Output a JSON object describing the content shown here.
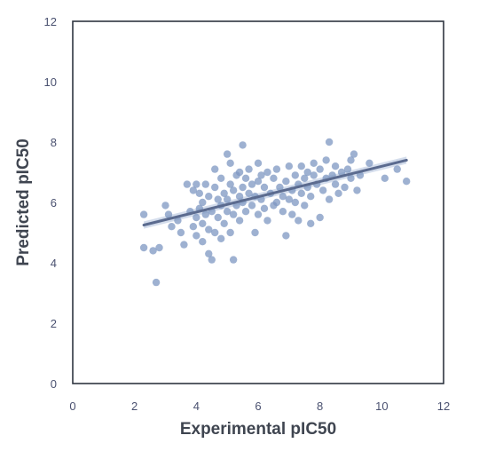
{
  "chart_data": {
    "type": "scatter",
    "title": "",
    "xlabel": "Experimental pIC50",
    "ylabel": "Predicted pIC50",
    "xlim": [
      0,
      12
    ],
    "ylim": [
      0,
      12
    ],
    "xticks": [
      "0",
      "2",
      "4",
      "6",
      "8",
      "10",
      "12"
    ],
    "yticks": [
      "0",
      "2",
      "4",
      "6",
      "8",
      "10",
      "12"
    ],
    "grid": false,
    "legend": "none",
    "colors": {
      "points": "#7e97c2",
      "line": "#5b6b8f",
      "band": "#b8c6e0",
      "frame": "#2f3540"
    },
    "series": [
      {
        "points": [
          [
            2.3,
            5.6
          ],
          [
            2.3,
            4.5
          ],
          [
            2.6,
            4.4
          ],
          [
            2.7,
            3.35
          ],
          [
            2.8,
            4.5
          ],
          [
            3.0,
            5.9
          ],
          [
            3.1,
            5.6
          ],
          [
            3.2,
            5.2
          ],
          [
            3.4,
            5.4
          ],
          [
            3.5,
            5.0
          ],
          [
            3.6,
            4.6
          ],
          [
            3.7,
            6.6
          ],
          [
            3.8,
            5.7
          ],
          [
            3.9,
            5.2
          ],
          [
            3.9,
            6.4
          ],
          [
            4.0,
            4.9
          ],
          [
            4.0,
            5.5
          ],
          [
            4.0,
            6.6
          ],
          [
            4.1,
            5.8
          ],
          [
            4.1,
            6.3
          ],
          [
            4.2,
            4.7
          ],
          [
            4.2,
            5.3
          ],
          [
            4.2,
            6.0
          ],
          [
            4.3,
            5.6
          ],
          [
            4.3,
            6.6
          ],
          [
            4.4,
            4.3
          ],
          [
            4.4,
            5.1
          ],
          [
            4.4,
            6.2
          ],
          [
            4.5,
            4.1
          ],
          [
            4.5,
            5.7
          ],
          [
            4.6,
            5.0
          ],
          [
            4.6,
            6.5
          ],
          [
            4.6,
            7.1
          ],
          [
            4.7,
            5.5
          ],
          [
            4.7,
            6.1
          ],
          [
            4.8,
            4.8
          ],
          [
            4.8,
            5.9
          ],
          [
            4.8,
            6.8
          ],
          [
            4.9,
            5.3
          ],
          [
            4.9,
            6.3
          ],
          [
            5.0,
            5.7
          ],
          [
            5.0,
            7.6
          ],
          [
            5.0,
            6.1
          ],
          [
            5.1,
            6.6
          ],
          [
            5.1,
            7.3
          ],
          [
            5.1,
            5.0
          ],
          [
            5.2,
            4.1
          ],
          [
            5.2,
            6.4
          ],
          [
            5.2,
            5.6
          ],
          [
            5.3,
            6.9
          ],
          [
            5.3,
            5.9
          ],
          [
            5.4,
            6.2
          ],
          [
            5.4,
            7.0
          ],
          [
            5.4,
            5.4
          ],
          [
            5.5,
            6.0
          ],
          [
            5.5,
            7.9
          ],
          [
            5.5,
            6.5
          ],
          [
            5.6,
            5.7
          ],
          [
            5.6,
            6.8
          ],
          [
            5.7,
            6.3
          ],
          [
            5.7,
            7.1
          ],
          [
            5.8,
            5.9
          ],
          [
            5.8,
            6.6
          ],
          [
            5.9,
            5.0
          ],
          [
            5.9,
            6.2
          ],
          [
            6.0,
            6.7
          ],
          [
            6.0,
            7.3
          ],
          [
            6.0,
            5.6
          ],
          [
            6.1,
            6.1
          ],
          [
            6.1,
            6.9
          ],
          [
            6.2,
            5.8
          ],
          [
            6.2,
            6.5
          ],
          [
            6.3,
            7.0
          ],
          [
            6.3,
            5.4
          ],
          [
            6.4,
            6.3
          ],
          [
            6.5,
            6.8
          ],
          [
            6.5,
            5.9
          ],
          [
            6.6,
            6.0
          ],
          [
            6.6,
            7.1
          ],
          [
            6.7,
            6.5
          ],
          [
            6.8,
            5.7
          ],
          [
            6.8,
            6.2
          ],
          [
            6.9,
            4.9
          ],
          [
            6.9,
            6.7
          ],
          [
            7.0,
            6.1
          ],
          [
            7.0,
            7.2
          ],
          [
            7.1,
            5.6
          ],
          [
            7.1,
            6.4
          ],
          [
            7.2,
            6.9
          ],
          [
            7.2,
            6.0
          ],
          [
            7.3,
            5.4
          ],
          [
            7.3,
            6.6
          ],
          [
            7.4,
            7.2
          ],
          [
            7.4,
            6.3
          ],
          [
            7.5,
            5.9
          ],
          [
            7.5,
            6.8
          ],
          [
            7.6,
            7.0
          ],
          [
            7.6,
            6.5
          ],
          [
            7.7,
            5.3
          ],
          [
            7.7,
            6.2
          ],
          [
            7.8,
            6.9
          ],
          [
            7.8,
            7.3
          ],
          [
            7.9,
            6.6
          ],
          [
            8.0,
            5.5
          ],
          [
            8.0,
            7.1
          ],
          [
            8.1,
            6.4
          ],
          [
            8.2,
            6.8
          ],
          [
            8.2,
            7.4
          ],
          [
            8.3,
            6.1
          ],
          [
            8.3,
            8.0
          ],
          [
            8.4,
            6.9
          ],
          [
            8.5,
            6.6
          ],
          [
            8.5,
            7.2
          ],
          [
            8.6,
            6.3
          ],
          [
            8.7,
            7.0
          ],
          [
            8.8,
            6.5
          ],
          [
            8.9,
            7.1
          ],
          [
            9.0,
            6.8
          ],
          [
            9.0,
            7.4
          ],
          [
            9.1,
            7.6
          ],
          [
            9.2,
            6.4
          ],
          [
            9.3,
            6.9
          ],
          [
            9.6,
            7.3
          ],
          [
            10.1,
            6.8
          ],
          [
            10.5,
            7.1
          ],
          [
            10.8,
            6.7
          ]
        ]
      }
    ],
    "regression": {
      "x": [
        2.3,
        10.8
      ],
      "y": [
        5.25,
        7.4
      ],
      "band": 0.12
    }
  }
}
